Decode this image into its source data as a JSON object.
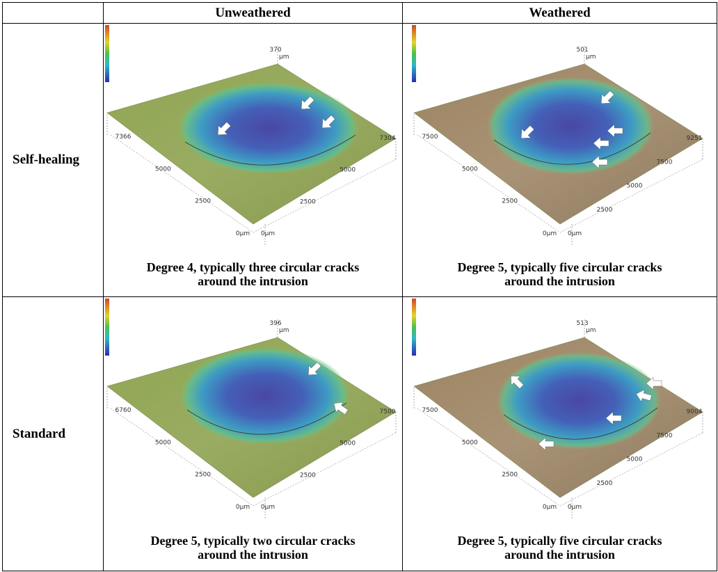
{
  "table": {
    "columns": [
      "Unweathered",
      "Weathered"
    ],
    "rows": [
      {
        "label": "Self-healing",
        "cells": [
          {
            "caption": [
              "Degree 4, typically three circular cracks",
              "around the intrusion"
            ],
            "plot": {
              "height": "370",
              "unit": "µm",
              "left_axis": [
                "7366",
                "5000",
                "2500",
                "0µm"
              ],
              "right_axis": [
                "7304",
                "5000",
                "2500",
                "0µm"
              ]
            }
          },
          {
            "caption": [
              "Degree 5, typically five circular cracks",
              "around the intrusion"
            ],
            "plot": {
              "height": "501",
              "unit": "µm",
              "left_axis": [
                "7500",
                "5000",
                "2500",
                "0µm"
              ],
              "right_axis": [
                "9251",
                "7500",
                "5000",
                "2500",
                "0µm"
              ]
            }
          }
        ]
      },
      {
        "label": "Standard",
        "cells": [
          {
            "caption": [
              "Degree 5, typically two circular cracks",
              "around the intrusion"
            ],
            "plot": {
              "height": "396",
              "unit": "µm",
              "left_axis": [
                "6760",
                "5000",
                "2500",
                "0µm"
              ],
              "right_axis": [
                "7500",
                "5000",
                "2500",
                "0µm"
              ]
            }
          },
          {
            "caption": [
              "Degree 5, typically five circular cracks",
              "around the intrusion"
            ],
            "plot": {
              "height": "513",
              "unit": "µm",
              "left_axis": [
                "7500",
                "5000",
                "2500",
                "0µm"
              ],
              "right_axis": [
                "9004",
                "7500",
                "5000",
                "2500",
                "0µm"
              ]
            }
          }
        ]
      }
    ]
  }
}
